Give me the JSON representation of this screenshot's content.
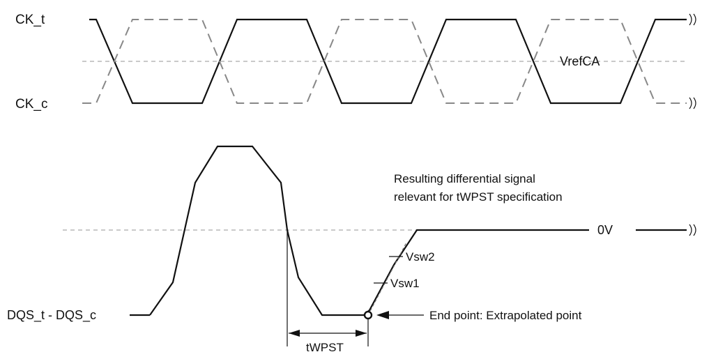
{
  "labels": {
    "ck_t": "CK_t",
    "ck_c": "CK_c",
    "vrefca": "VrefCA",
    "dqs_diff": "DQS_t - DQS_c",
    "zero_v": "0V",
    "vsw2": "Vsw2",
    "vsw1": "Vsw1",
    "end_point": "End point: Extrapolated point",
    "twpst": "tWPST",
    "resulting_line1": "Resulting differential signal",
    "resulting_line2": "relevant for tWPST specification"
  },
  "colors": {
    "signal": "#111111",
    "complement": "#888888",
    "reference": "#aaaaaa"
  }
}
